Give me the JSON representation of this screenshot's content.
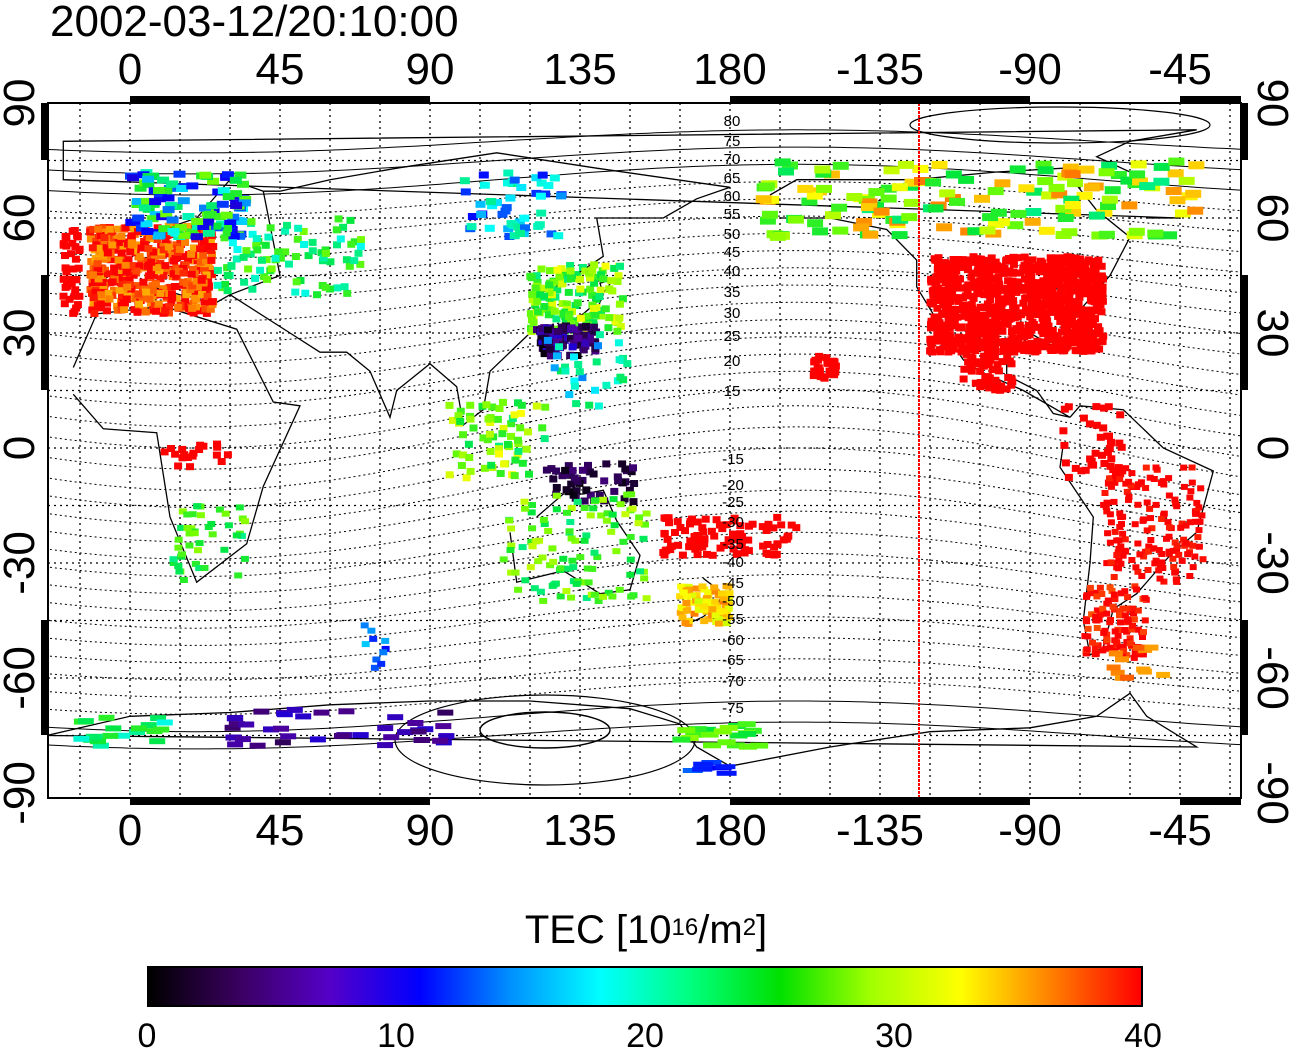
{
  "title": "2002-03-12/20:10:00",
  "map": {
    "top_lon_ticks": [
      "0",
      "45",
      "90",
      "135",
      "180",
      "-135",
      "-90",
      "-45"
    ],
    "bottom_lon_ticks": [
      "0",
      "45",
      "90",
      "135",
      "180",
      "-135",
      "-90",
      "-45"
    ],
    "left_lat_ticks": [
      "90",
      "60",
      "30",
      "0",
      "-30",
      "-60",
      "-90"
    ],
    "right_lat_ticks": [
      "90",
      "60",
      "30",
      "0",
      "-30",
      "-60",
      "-90"
    ],
    "magnetic_contour_labels_north": [
      "80",
      "75",
      "70",
      "65",
      "60",
      "55",
      "50",
      "45",
      "40",
      "35",
      "30",
      "25",
      "20",
      "15"
    ],
    "magnetic_contour_labels_south": [
      "-15",
      "-20",
      "-25",
      "-30",
      "-35",
      "-40",
      "-45",
      "-50",
      "-55",
      "-60",
      "-65",
      "-70",
      "-75"
    ],
    "marker_line_color": "#ff0000"
  },
  "colorbar": {
    "title_prefix": "TEC  [10",
    "title_exp1": "16",
    "title_mid": "/m",
    "title_exp2": "2",
    "title_suffix": "]",
    "tick_labels": [
      "0",
      "10",
      "20",
      "30",
      "40"
    ],
    "colors": [
      "#000000",
      "#3a0060",
      "#5500c8",
      "#0000ff",
      "#0090ff",
      "#00ffff",
      "#00ff80",
      "#00e000",
      "#a0ff00",
      "#ffff00",
      "#ff8000",
      "#ff0000"
    ]
  }
}
